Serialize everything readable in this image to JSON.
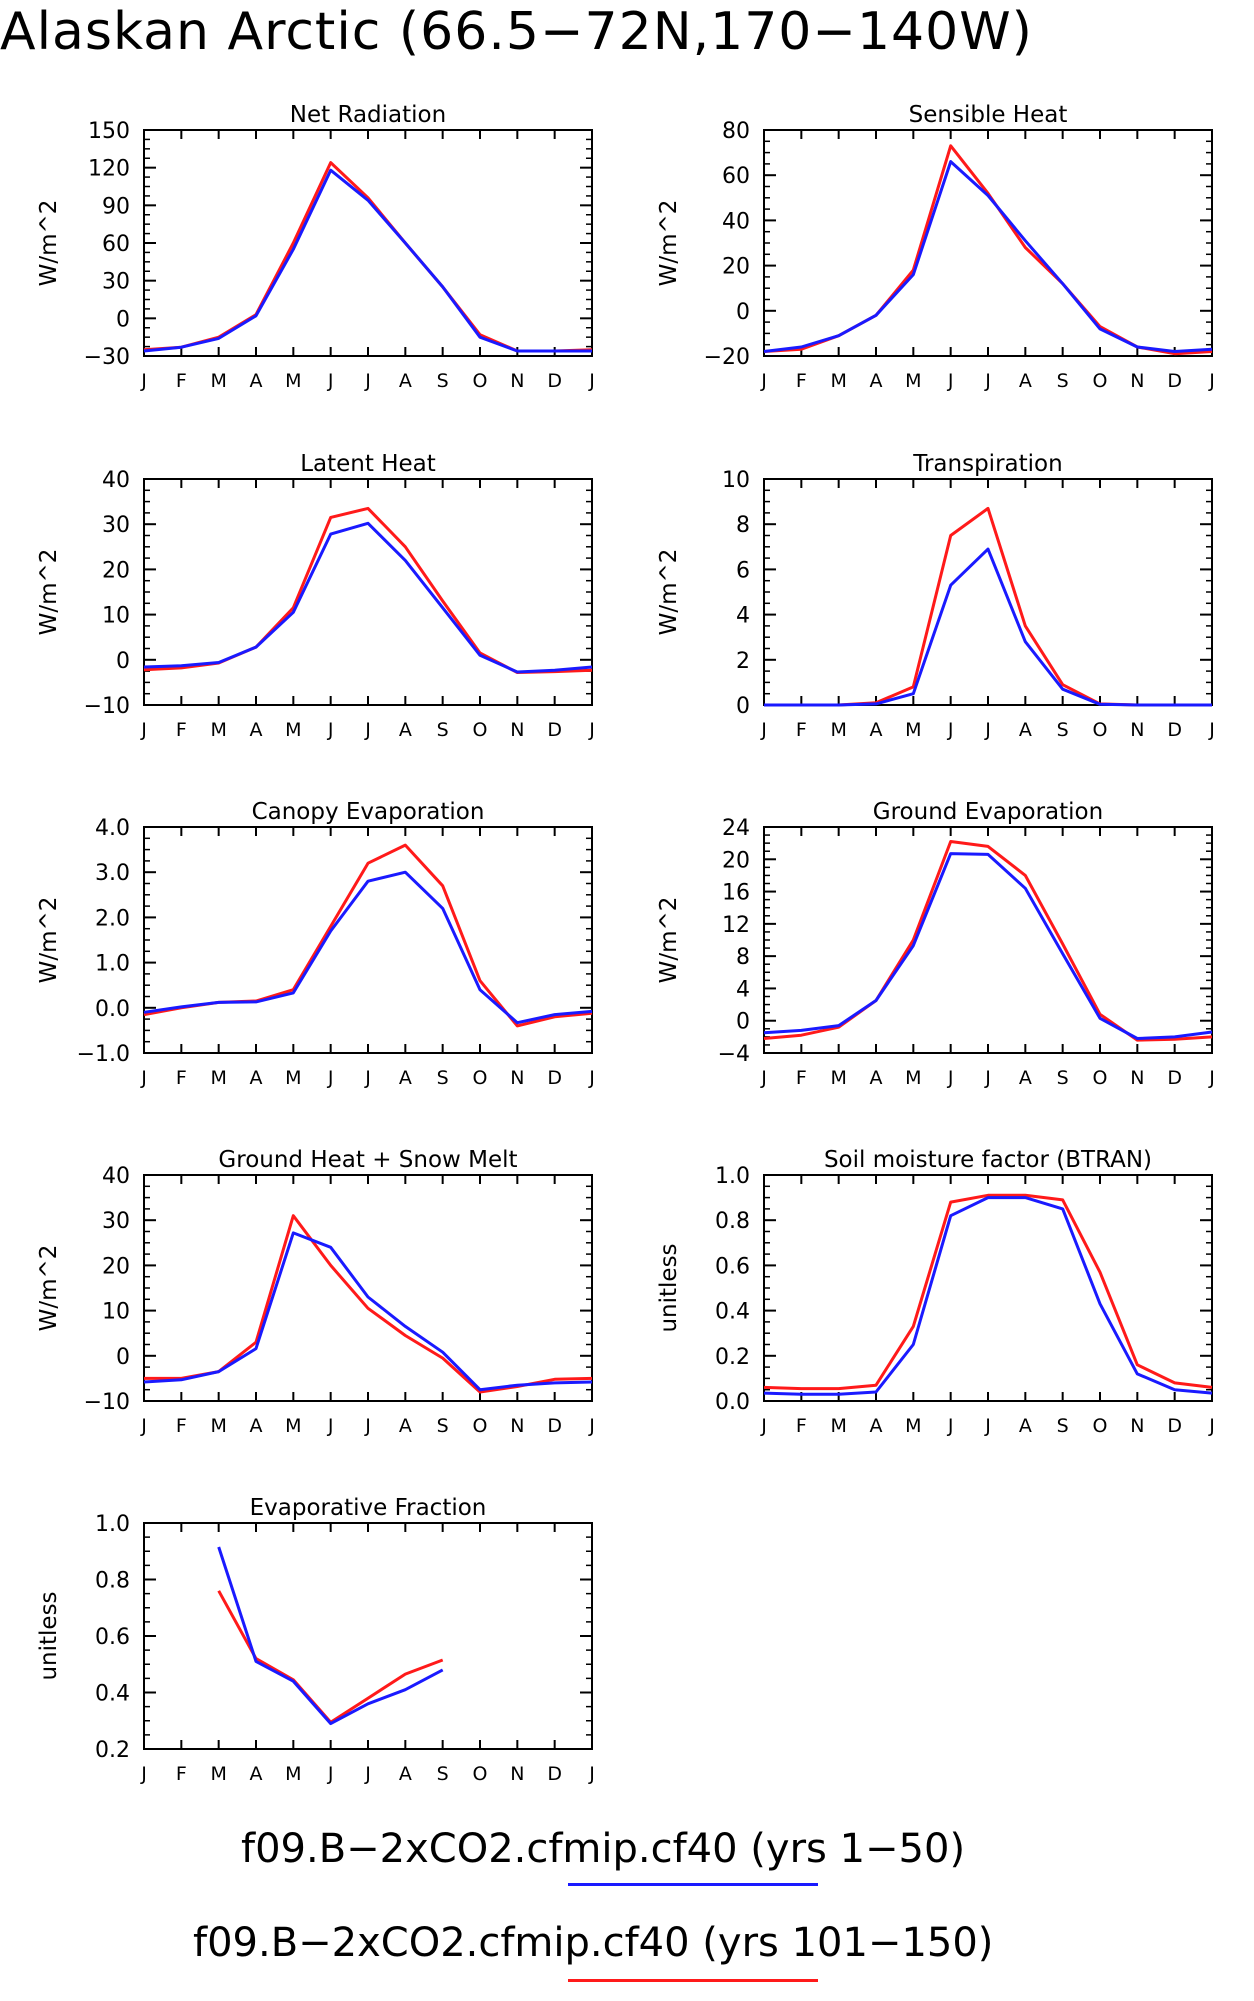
{
  "page": {
    "title": "Alaskan Arctic (66.5−72N,170−140W)"
  },
  "legend": {
    "entries": [
      {
        "label": "f09.B−2xCO2.cfmip.cf40 (yrs 1−50)",
        "color": "#1a1aff"
      },
      {
        "label": "f09.B−2xCO2.cfmip.cf40 (yrs 101−150)",
        "color": "#ff1a1a"
      }
    ]
  },
  "colors": {
    "series_a": "#1a1aff",
    "series_b": "#ff1a1a"
  },
  "chart_data": [
    {
      "type": "line",
      "title": "Net Radiation",
      "xlabel": "",
      "ylabel": "W/m^2",
      "categories": [
        "J",
        "F",
        "M",
        "A",
        "M",
        "J",
        "J",
        "A",
        "S",
        "O",
        "N",
        "D",
        "J"
      ],
      "ylim": [
        -30,
        150
      ],
      "yticks": [
        -30,
        0,
        30,
        60,
        90,
        120,
        150
      ],
      "ytick_labels": [
        "−30",
        "0",
        "30",
        "60",
        "90",
        "120",
        "150"
      ],
      "series": [
        {
          "color": "#ff1a1a",
          "values": [
            -25,
            -23,
            -15,
            3,
            60,
            124,
            96,
            60,
            25,
            -13,
            -26,
            -26,
            -25
          ]
        },
        {
          "color": "#1a1aff",
          "values": [
            -26,
            -23,
            -16,
            2,
            55,
            118,
            94,
            60,
            25,
            -15,
            -26,
            -26,
            -26
          ]
        }
      ]
    },
    {
      "type": "line",
      "title": "Sensible Heat",
      "xlabel": "",
      "ylabel": "W/m^2",
      "categories": [
        "J",
        "F",
        "M",
        "A",
        "M",
        "J",
        "J",
        "A",
        "S",
        "O",
        "N",
        "D",
        "J"
      ],
      "ylim": [
        -20,
        80
      ],
      "yticks": [
        -20,
        0,
        20,
        40,
        60,
        80
      ],
      "ytick_labels": [
        "−20",
        "0",
        "20",
        "40",
        "60",
        "80"
      ],
      "series": [
        {
          "color": "#ff1a1a",
          "values": [
            -18,
            -17,
            -11,
            -2,
            18,
            73,
            52,
            28,
            12,
            -7,
            -16,
            -19,
            -18
          ]
        },
        {
          "color": "#1a1aff",
          "values": [
            -18,
            -16,
            -11,
            -2,
            16,
            66,
            51,
            31,
            12,
            -8,
            -16,
            -18,
            -17
          ]
        }
      ]
    },
    {
      "type": "line",
      "title": "Latent Heat",
      "xlabel": "",
      "ylabel": "W/m^2",
      "categories": [
        "J",
        "F",
        "M",
        "A",
        "M",
        "J",
        "J",
        "A",
        "S",
        "O",
        "N",
        "D",
        "J"
      ],
      "ylim": [
        -10,
        40
      ],
      "yticks": [
        -10,
        0,
        10,
        20,
        30,
        40
      ],
      "ytick_labels": [
        "−10",
        "0",
        "10",
        "20",
        "30",
        "40"
      ],
      "series": [
        {
          "color": "#ff1a1a",
          "values": [
            -2.2,
            -1.8,
            -0.7,
            2.8,
            11.5,
            31.5,
            33.5,
            25,
            13,
            1.5,
            -2.8,
            -2.6,
            -2.3
          ]
        },
        {
          "color": "#1a1aff",
          "values": [
            -1.6,
            -1.3,
            -0.6,
            2.8,
            10.5,
            27.8,
            30.2,
            22,
            11.5,
            1,
            -2.7,
            -2.3,
            -1.6
          ]
        }
      ]
    },
    {
      "type": "line",
      "title": "Transpiration",
      "xlabel": "",
      "ylabel": "W/m^2",
      "categories": [
        "J",
        "F",
        "M",
        "A",
        "M",
        "J",
        "J",
        "A",
        "S",
        "O",
        "N",
        "D",
        "J"
      ],
      "ylim": [
        0,
        10
      ],
      "yticks": [
        0,
        2,
        4,
        6,
        8,
        10
      ],
      "ytick_labels": [
        "0",
        "2",
        "4",
        "6",
        "8",
        "10"
      ],
      "series": [
        {
          "color": "#ff1a1a",
          "values": [
            0,
            0,
            0,
            0.1,
            0.8,
            7.5,
            8.7,
            3.5,
            0.9,
            0.05,
            0,
            0,
            0
          ]
        },
        {
          "color": "#1a1aff",
          "values": [
            0,
            0,
            0,
            0.05,
            0.5,
            5.3,
            6.9,
            2.8,
            0.7,
            0.03,
            0,
            0,
            0
          ]
        }
      ]
    },
    {
      "type": "line",
      "title": "Canopy Evaporation",
      "xlabel": "",
      "ylabel": "W/m^2",
      "categories": [
        "J",
        "F",
        "M",
        "A",
        "M",
        "J",
        "J",
        "A",
        "S",
        "O",
        "N",
        "D",
        "J"
      ],
      "ylim": [
        -1.0,
        4.0
      ],
      "yticks": [
        -1,
        0,
        1,
        2,
        3,
        4
      ],
      "ytick_labels": [
        "−1.0",
        "0.0",
        "1.0",
        "2.0",
        "3.0",
        "4.0"
      ],
      "series": [
        {
          "color": "#ff1a1a",
          "values": [
            -0.15,
            0,
            0.12,
            0.15,
            0.4,
            1.8,
            3.2,
            3.6,
            2.7,
            0.6,
            -0.4,
            -0.2,
            -0.12
          ]
        },
        {
          "color": "#1a1aff",
          "values": [
            -0.1,
            0.02,
            0.12,
            0.13,
            0.33,
            1.7,
            2.8,
            3.0,
            2.2,
            0.4,
            -0.33,
            -0.15,
            -0.08
          ]
        }
      ]
    },
    {
      "type": "line",
      "title": "Ground Evaporation",
      "xlabel": "",
      "ylabel": "W/m^2",
      "categories": [
        "J",
        "F",
        "M",
        "A",
        "M",
        "J",
        "J",
        "A",
        "S",
        "O",
        "N",
        "D",
        "J"
      ],
      "ylim": [
        -4,
        24
      ],
      "yticks": [
        -4,
        0,
        4,
        8,
        12,
        16,
        20,
        24
      ],
      "ytick_labels": [
        "−4",
        "0",
        "4",
        "8",
        "12",
        "16",
        "20",
        "24"
      ],
      "series": [
        {
          "color": "#ff1a1a",
          "values": [
            -2.2,
            -1.8,
            -0.8,
            2.5,
            10,
            22.2,
            21.6,
            18,
            9.5,
            0.8,
            -2.4,
            -2.3,
            -2
          ]
        },
        {
          "color": "#1a1aff",
          "values": [
            -1.5,
            -1.2,
            -0.6,
            2.5,
            9.3,
            20.7,
            20.6,
            16.4,
            8.3,
            0.3,
            -2.2,
            -2,
            -1.4
          ]
        }
      ]
    },
    {
      "type": "line",
      "title": "Ground Heat + Snow Melt",
      "xlabel": "",
      "ylabel": "W/m^2",
      "categories": [
        "J",
        "F",
        "M",
        "A",
        "M",
        "J",
        "J",
        "A",
        "S",
        "O",
        "N",
        "D",
        "J"
      ],
      "ylim": [
        -10,
        40
      ],
      "yticks": [
        -10,
        0,
        10,
        20,
        30,
        40
      ],
      "ytick_labels": [
        "−10",
        "0",
        "10",
        "20",
        "30",
        "40"
      ],
      "series": [
        {
          "color": "#ff1a1a",
          "values": [
            -5,
            -5,
            -3.5,
            3,
            31,
            20,
            10.5,
            4.5,
            -0.5,
            -8,
            -6.8,
            -5.2,
            -5
          ]
        },
        {
          "color": "#1a1aff",
          "values": [
            -5.8,
            -5.3,
            -3.5,
            1.6,
            27.2,
            24,
            13,
            6.5,
            0.8,
            -7.5,
            -6.5,
            -6,
            -5.8
          ]
        }
      ]
    },
    {
      "type": "line",
      "title": "Soil moisture factor (BTRAN)",
      "xlabel": "",
      "ylabel": "unitless",
      "categories": [
        "J",
        "F",
        "M",
        "A",
        "M",
        "J",
        "J",
        "A",
        "S",
        "O",
        "N",
        "D",
        "J"
      ],
      "ylim": [
        0,
        1.0
      ],
      "yticks": [
        0,
        0.2,
        0.4,
        0.6,
        0.8,
        1.0
      ],
      "ytick_labels": [
        "0.0",
        "0.2",
        "0.4",
        "0.6",
        "0.8",
        "1.0"
      ],
      "series": [
        {
          "color": "#ff1a1a",
          "values": [
            0.06,
            0.055,
            0.055,
            0.07,
            0.33,
            0.88,
            0.91,
            0.91,
            0.89,
            0.57,
            0.16,
            0.08,
            0.06
          ]
        },
        {
          "color": "#1a1aff",
          "values": [
            0.035,
            0.03,
            0.03,
            0.04,
            0.25,
            0.82,
            0.9,
            0.9,
            0.85,
            0.43,
            0.12,
            0.05,
            0.035
          ]
        }
      ]
    },
    {
      "type": "line",
      "title": "Evaporative Fraction",
      "xlabel": "",
      "ylabel": "unitless",
      "categories": [
        "J",
        "F",
        "M",
        "A",
        "M",
        "J",
        "J",
        "A",
        "S",
        "O",
        "N",
        "D",
        "J"
      ],
      "ylim": [
        0.2,
        1.0
      ],
      "yticks": [
        0.2,
        0.4,
        0.6,
        0.8,
        1.0
      ],
      "ytick_labels": [
        "0.2",
        "0.4",
        "0.6",
        "0.8",
        "1.0"
      ],
      "series": [
        {
          "color": "#ff1a1a",
          "values": [
            null,
            null,
            0.76,
            0.52,
            0.445,
            0.295,
            0.38,
            0.465,
            0.515,
            null,
            null,
            null,
            null
          ]
        },
        {
          "color": "#1a1aff",
          "values": [
            null,
            null,
            0.915,
            0.51,
            0.44,
            0.29,
            0.36,
            0.41,
            0.48,
            null,
            null,
            null,
            null
          ]
        }
      ]
    }
  ]
}
